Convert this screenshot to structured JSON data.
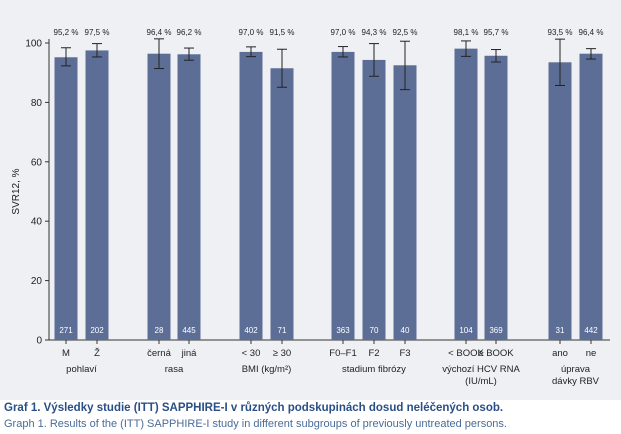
{
  "chart_data": {
    "type": "bar",
    "ylabel": "SVR12, %",
    "ylim": [
      0,
      100
    ],
    "yticks": [
      0,
      20,
      40,
      60,
      80,
      100
    ],
    "grid": false,
    "bar_color": "#5d6e96",
    "groups": [
      {
        "name": "pohlaví",
        "name_lines": [
          "pohlaví"
        ],
        "bars": [
          {
            "category": "M",
            "value": 95.2,
            "label": "95,2 %",
            "err_low": 92.3,
            "err_high": 98.4,
            "n": "271"
          },
          {
            "category": "Ž",
            "value": 97.5,
            "label": "97,5 %",
            "err_low": 95.3,
            "err_high": 99.8,
            "n": "202"
          }
        ]
      },
      {
        "name": "rasa",
        "name_lines": [
          "rasa"
        ],
        "bars": [
          {
            "category": "černá",
            "value": 96.4,
            "label": "96,4 %",
            "err_low": 91.4,
            "err_high": 101.4,
            "n": "28"
          },
          {
            "category": "jiná",
            "value": 96.2,
            "label": "96,2 %",
            "err_low": 94.2,
            "err_high": 98.3,
            "n": "445"
          }
        ]
      },
      {
        "name": "BMI (kg/m²)",
        "name_lines": [
          "BMI (kg/m²)"
        ],
        "bars": [
          {
            "category": "< 30",
            "value": 97.0,
            "label": "97,0 %",
            "err_low": 95.4,
            "err_high": 98.7,
            "n": "402"
          },
          {
            "category": "≥ 30",
            "value": 91.5,
            "label": "91,5 %",
            "err_low": 85.1,
            "err_high": 97.9,
            "n": "71"
          }
        ]
      },
      {
        "name": "stadium fibrózy",
        "name_lines": [
          "stadium fibrózy"
        ],
        "bars": [
          {
            "category": "F0–F1",
            "value": 97.0,
            "label": "97,0 %",
            "err_low": 95.3,
            "err_high": 98.8,
            "n": "363"
          },
          {
            "category": "F2",
            "value": 94.3,
            "label": "94,3 %",
            "err_low": 88.8,
            "err_high": 99.8,
            "n": "70"
          },
          {
            "category": "F3",
            "value": 92.5,
            "label": "92,5 %",
            "err_low": 84.3,
            "err_high": 100.6,
            "n": "40"
          }
        ]
      },
      {
        "name": "výchozí HCV RNA (IU/mL)",
        "name_lines": [
          "výchozí HCV RNA",
          "(IU/mL)"
        ],
        "bars": [
          {
            "category": "< BOOK",
            "value": 98.1,
            "label": "98,1 %",
            "err_low": 95.5,
            "err_high": 100.7,
            "n": "104"
          },
          {
            "category": "≥ BOOK",
            "value": 95.7,
            "label": "95,7 %",
            "err_low": 93.6,
            "err_high": 97.8,
            "n": "369"
          }
        ]
      },
      {
        "name": "úprava dávky RBV",
        "name_lines": [
          "úprava",
          "dávky RBV"
        ],
        "bars": [
          {
            "category": "ano",
            "value": 93.5,
            "label": "93,5 %",
            "err_low": 85.7,
            "err_high": 101.3,
            "n": "31"
          },
          {
            "category": "ne",
            "value": 96.4,
            "label": "96,4 %",
            "err_low": 94.6,
            "err_high": 98.1,
            "n": "442"
          }
        ]
      }
    ]
  },
  "caption": {
    "line1": "Graf 1. Výsledky studie (ITT) SAPPHIRE-I v různých podskupinách dosud neléčených osob.",
    "line2": "Graph 1. Results of the (ITT) SAPPHIRE-I study in different subgroups of previously untreated persons."
  }
}
